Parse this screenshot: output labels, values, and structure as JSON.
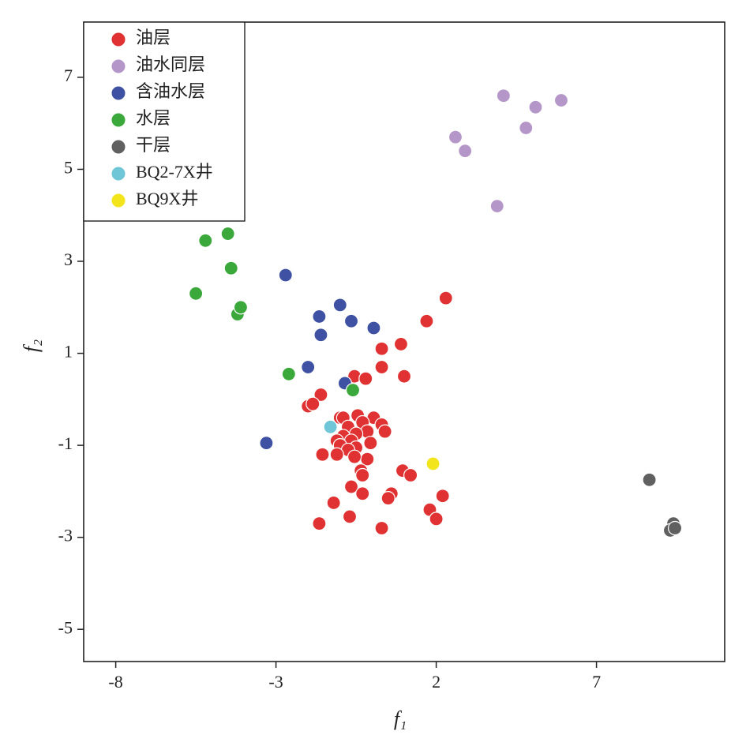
{
  "chart_data": {
    "type": "scatter",
    "x_label": "f₁",
    "y_label": "f₂",
    "xlim": [
      -9,
      11
    ],
    "ylim": [
      -5.7,
      8.2
    ],
    "xticks": [
      -8,
      -3,
      2,
      7
    ],
    "yticks": [
      -5,
      -3,
      -1,
      1,
      3,
      5,
      7
    ],
    "grid": false,
    "legend": "upper left",
    "series": [
      {
        "name": "油层",
        "color": "#e03232",
        "x": [
          2.3,
          1.7,
          0.9,
          0.3,
          0.3,
          1.0,
          -0.55,
          -0.2,
          -1.6,
          -2.0,
          -1.85,
          -1.0,
          -0.9,
          -0.45,
          0.05,
          0.3,
          0.4,
          -0.3,
          -0.75,
          -0.15,
          -0.5,
          -0.9,
          -1.1,
          -0.65,
          -0.05,
          -1.0,
          -0.5,
          -0.75,
          -1.1,
          -0.15,
          -0.55,
          -0.35,
          -0.3,
          -1.55,
          0.95,
          1.2,
          -0.65,
          -0.3,
          0.6,
          0.5,
          -1.2,
          2.2,
          1.8,
          2.0,
          -0.7,
          -1.65,
          0.3
        ],
        "values": [
          2.2,
          1.7,
          1.2,
          1.1,
          0.7,
          0.5,
          0.5,
          0.45,
          0.1,
          -0.15,
          -0.1,
          -0.4,
          -0.4,
          -0.35,
          -0.4,
          -0.55,
          -0.7,
          -0.5,
          -0.6,
          -0.7,
          -0.75,
          -0.8,
          -0.9,
          -0.9,
          -0.95,
          -1.0,
          -1.05,
          -1.1,
          -1.2,
          -1.3,
          -1.25,
          -1.55,
          -1.65,
          -1.2,
          -1.55,
          -1.65,
          -1.9,
          -2.05,
          -2.05,
          -2.15,
          -2.25,
          -2.1,
          -2.4,
          -2.6,
          -2.55,
          -2.7,
          -2.8
        ]
      },
      {
        "name": "油水同层",
        "color": "#b497c8",
        "x": [
          2.6,
          2.9,
          4.1,
          5.1,
          5.9,
          4.8,
          3.9
        ],
        "values": [
          5.7,
          5.4,
          6.6,
          6.35,
          6.5,
          5.9,
          4.2
        ]
      },
      {
        "name": "含油水层",
        "color": "#3f51a3",
        "x": [
          -2.7,
          -1.0,
          -1.65,
          -0.65,
          0.05,
          -1.6,
          -2.0,
          -0.85,
          -3.3
        ],
        "values": [
          2.7,
          2.05,
          1.8,
          1.7,
          1.55,
          1.4,
          0.7,
          0.35,
          -0.95
        ]
      },
      {
        "name": "水层",
        "color": "#3aa83a",
        "x": [
          -5.2,
          -4.5,
          -4.4,
          -4.2,
          -4.1,
          -5.5,
          -2.6,
          -0.6
        ],
        "values": [
          3.45,
          3.6,
          2.85,
          1.85,
          2.0,
          2.3,
          0.55,
          0.2
        ]
      },
      {
        "name": "干层",
        "color": "#606060",
        "x": [
          8.65,
          9.4,
          9.3,
          9.45
        ],
        "values": [
          -1.75,
          -2.7,
          -2.85,
          -2.8
        ]
      },
      {
        "name": "BQ2-7X井",
        "color": "#6ec6d6",
        "x": [
          -1.3
        ],
        "values": [
          -0.6
        ]
      },
      {
        "name": "BQ9X井",
        "color": "#f2e51c",
        "x": [
          1.9
        ],
        "values": [
          -1.4
        ]
      }
    ]
  }
}
